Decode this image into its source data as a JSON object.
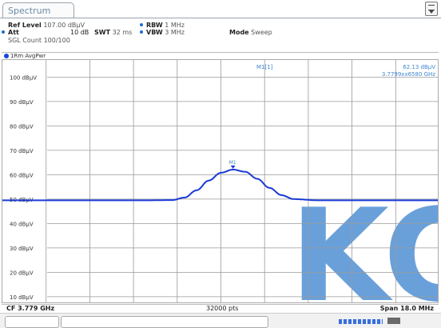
{
  "tab": {
    "label": "Spectrum"
  },
  "settings": {
    "ref_level_label": "Ref Level",
    "ref_level_value": "107.00 dBµV",
    "att_label": "Att",
    "att_value": "10 dB",
    "swt_label": "SWT",
    "swt_value": "32 ms",
    "rbw_label": "RBW",
    "rbw_value": "1 MHz",
    "vbw_label": "VBW",
    "vbw_value": "3 MHz",
    "mode_label": "Mode",
    "mode_value": "Sweep",
    "sgl_count": "SGL Count 100/100"
  },
  "trace": {
    "label": "1Rm AvgPwr"
  },
  "marker": {
    "name": "M1[1]",
    "level": "62.13 dBµV",
    "frequency": "3.7799xx6580 GHz",
    "plot_label": "M1"
  },
  "footer": {
    "center_freq": "CF 3.779 GHz",
    "points": "32000 pts",
    "span": "Span 18.0 MHz"
  },
  "colors": {
    "trace": "#1a3ad6",
    "marker_text": "#3f86cf",
    "grid": "#9a9a9a",
    "watermark": "#4f8fd4"
  },
  "watermark_text": "KC",
  "chart_data": {
    "type": "line",
    "ylabel_unit": "dBµV",
    "ylim": [
      7,
      107
    ],
    "yticks": [
      "100 dBµV",
      "90 dBµV",
      "80 dBµV",
      "70 dBµV",
      "60 dBµV",
      "50 dBµV",
      "40 dBµV",
      "30 dBµV",
      "20 dBµV",
      "10 dBµV"
    ],
    "ytick_values": [
      100,
      90,
      80,
      70,
      60,
      50,
      40,
      30,
      20,
      10
    ],
    "xlim": [
      3770,
      3788
    ],
    "x_unit": "MHz",
    "series": [
      {
        "x": [
          3770,
          3772,
          3774,
          3776,
          3777,
          3777.5,
          3778,
          3778.5,
          3779,
          3779.5,
          3780,
          3780.5,
          3781,
          3781.5,
          3782,
          3783,
          3785,
          3788
        ],
        "values": [
          49.5,
          49.5,
          49.5,
          49.5,
          49.6,
          50.6,
          53.6,
          57.6,
          60.8,
          62.1,
          61.2,
          58.3,
          54.6,
          51.6,
          50.0,
          49.5,
          49.5,
          49.5
        ]
      }
    ],
    "marker_point": {
      "x": 3779.5,
      "y": 62.13
    }
  }
}
